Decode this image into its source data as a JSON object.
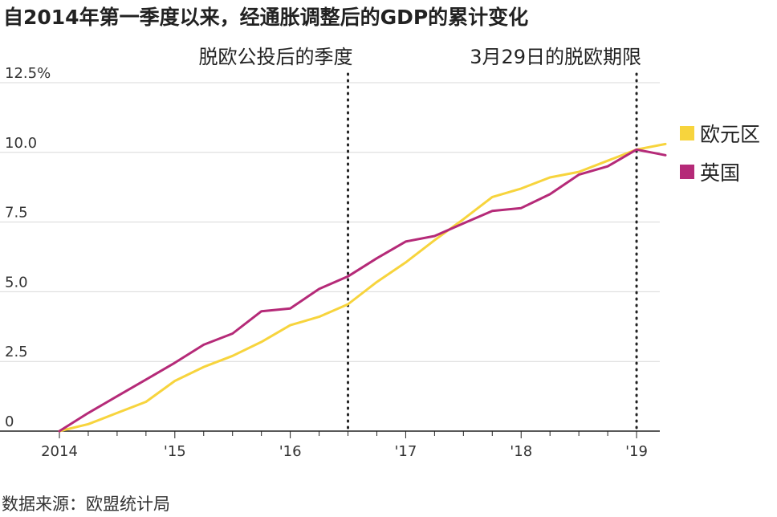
{
  "header": {
    "title": "自2014年第一季度以来，经通胀调整后的GDP的累计变化"
  },
  "footer": {
    "source": "数据来源：欧盟统计局"
  },
  "colors": {
    "eurozone": "#f7d43d",
    "uk": "#b52a78",
    "grid": "#d9d9d9",
    "axis": "#222222",
    "reference_line": "#222222"
  },
  "chart_data": {
    "type": "line",
    "title": "自2014年第一季度以来，经通胀调整后的GDP的累计变化",
    "xlabel": "",
    "ylabel": "",
    "x_axis": {
      "min": 2014.0,
      "max": 2019.5,
      "ticks": [
        2014,
        2015,
        2016,
        2017,
        2018,
        2019
      ],
      "tick_labels": [
        "2014",
        "'15",
        "'16",
        "'17",
        "'18",
        "'19"
      ]
    },
    "y_axis": {
      "min": 0,
      "max": 12.5,
      "ticks": [
        0,
        2.5,
        5.0,
        7.5,
        10.0,
        12.5
      ],
      "tick_labels": [
        "0",
        "2.5",
        "5.0",
        "7.5",
        "10.0",
        "12.5%"
      ]
    },
    "grid": "horizontal",
    "legend_position": "right",
    "x": [
      2014.0,
      2014.25,
      2014.5,
      2014.75,
      2015.0,
      2015.25,
      2015.5,
      2015.75,
      2016.0,
      2016.25,
      2016.5,
      2016.75,
      2017.0,
      2017.25,
      2017.5,
      2017.75,
      2018.0,
      2018.25,
      2018.5,
      2018.75,
      2019.0,
      2019.25
    ],
    "series": [
      {
        "name": "欧元区",
        "color_key": "eurozone",
        "values": [
          0,
          0.25,
          0.65,
          1.05,
          1.8,
          2.3,
          2.7,
          3.2,
          3.8,
          4.1,
          4.55,
          5.35,
          6.05,
          6.85,
          7.6,
          8.4,
          8.7,
          9.1,
          9.3,
          9.7,
          10.1,
          10.3
        ]
      },
      {
        "name": "英国",
        "color_key": "uk",
        "values": [
          0,
          0.65,
          1.25,
          1.85,
          2.45,
          3.1,
          3.5,
          4.3,
          4.4,
          5.1,
          5.55,
          6.2,
          6.8,
          7.0,
          7.45,
          7.9,
          8.0,
          8.5,
          9.2,
          9.5,
          10.1,
          9.9
        ]
      }
    ],
    "reference_lines": [
      {
        "x": 2016.5,
        "label": "脱欧公投后的季度"
      },
      {
        "x": 2019.0,
        "label": "3月29日的脱欧期限"
      }
    ]
  }
}
